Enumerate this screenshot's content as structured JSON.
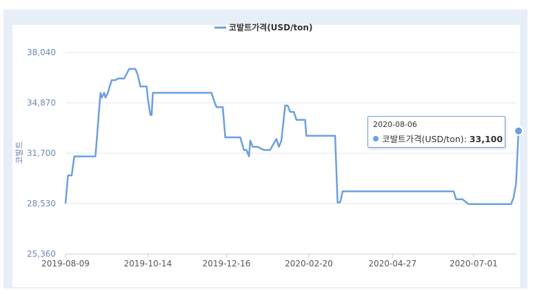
{
  "chart_data": {
    "type": "line",
    "legend": "코발트가격(USD/ton)",
    "legend_position": "top-center",
    "ylabel": "코발트",
    "ylim": [
      25360,
      39000
    ],
    "yticks": [
      "25,360",
      "28,530",
      "31,700",
      "34,870",
      "38,040"
    ],
    "ytick_values": [
      25360,
      28530,
      31700,
      34870,
      38040
    ],
    "xticks": [
      "2019-08-09",
      "2019-10-14",
      "2019-12-16",
      "2020-02-20",
      "2020-04-27",
      "2020-07-01"
    ],
    "grid": "horizontal",
    "color": "#6a9fe0",
    "series": [
      {
        "name": "코발트가격(USD/ton)",
        "x": [
          "2019-08-09",
          "2019-08-11",
          "2019-08-14",
          "2019-08-16",
          "2019-08-21",
          "2019-08-25",
          "2019-08-28",
          "2019-09-02",
          "2019-09-06",
          "2019-09-07",
          "2019-09-09",
          "2019-09-10",
          "2019-09-12",
          "2019-09-13",
          "2019-09-15",
          "2019-09-18",
          "2019-09-20",
          "2019-09-25",
          "2019-09-27",
          "2019-09-29",
          "2019-10-02",
          "2019-10-04",
          "2019-10-06",
          "2019-10-08",
          "2019-10-13",
          "2019-10-14",
          "2019-10-16",
          "2019-10-17",
          "2019-10-18",
          "2019-10-21",
          "2019-10-23",
          "2019-12-04",
          "2019-12-06",
          "2019-12-08",
          "2019-12-13",
          "2019-12-15",
          "2019-12-27",
          "2019-12-30",
          "2020-01-01",
          "2020-01-03",
          "2020-01-04",
          "2020-01-06",
          "2020-01-10",
          "2020-01-15",
          "2020-01-18",
          "2020-01-20",
          "2020-01-22",
          "2020-01-25",
          "2020-01-27",
          "2020-01-29",
          "2020-02-01",
          "2020-02-03",
          "2020-02-05",
          "2020-02-08",
          "2020-02-10",
          "2020-02-15",
          "2020-02-17",
          "2020-02-18",
          "2020-02-20",
          "2020-02-27",
          "2020-03-05",
          "2020-03-12",
          "2020-03-14",
          "2020-03-16",
          "2020-03-17",
          "2020-03-18",
          "2020-03-20",
          "2020-03-22",
          "2020-06-15",
          "2020-06-17",
          "2020-06-20",
          "2020-06-22",
          "2020-06-27",
          "2020-06-29",
          "2020-07-31",
          "2020-08-02",
          "2020-08-04",
          "2020-08-06"
        ],
        "values": [
          28530,
          30300,
          30300,
          31500,
          31500,
          31500,
          31500,
          31500,
          35500,
          35200,
          35500,
          35200,
          35500,
          35800,
          36300,
          36300,
          36400,
          36400,
          36700,
          37000,
          37000,
          37000,
          36600,
          35900,
          35900,
          35100,
          34100,
          34100,
          35500,
          35500,
          35500,
          35500,
          35000,
          34600,
          34600,
          32700,
          32700,
          31900,
          31900,
          31500,
          32500,
          32100,
          32100,
          31900,
          31900,
          31900,
          32200,
          32600,
          32100,
          32500,
          34700,
          34700,
          34300,
          34300,
          33800,
          33800,
          33800,
          32800,
          32800,
          32800,
          32800,
          32800,
          28600,
          28600,
          28900,
          29300,
          29300,
          29300,
          29300,
          28800,
          28800,
          28800,
          28500,
          28500,
          28500,
          28900,
          29800,
          33100
        ]
      }
    ],
    "tooltip": {
      "date": "2020-08-06",
      "series_label": "코발트가격(USD/ton):",
      "value": "33,100"
    }
  }
}
